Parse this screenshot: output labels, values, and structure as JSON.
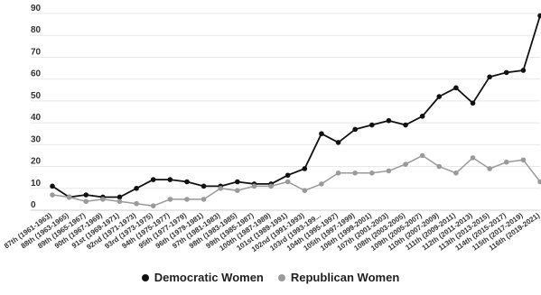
{
  "chart_data": {
    "type": "line",
    "title": "",
    "xlabel": "",
    "ylabel": "",
    "ylim": [
      0,
      90
    ],
    "grid": true,
    "legend_position": "bottom",
    "categories": [
      "87th (1961-1963)",
      "88th (1963-1965)",
      "89th (1965-1967)",
      "90th (1967-1969)",
      "91st (1969-1971)",
      "92nd (1971-1973)",
      "93rd (1973-1975)",
      "94th (1975-1977)",
      "95th (1977-1979)",
      "96th (1979-1981)",
      "97th (1981-1983)",
      "98th (1983-1985)",
      "99th (1985-1987)",
      "100th (1987-1989)",
      "101st (1989-1991)",
      "102nd (1991-1993)",
      "103rd (1993-199...",
      "104th (1995-1997)",
      "105th (1997-1999)",
      "106th (1999-2001)",
      "107th (2001-2003)",
      "108th (2003-2005)",
      "109th (2005-2007)",
      "110th (2007-2009)",
      "111th (2009-2011)",
      "112th (2011-2013)",
      "113th (2013-2015)",
      "114th (2015-2017)",
      "115th (2017-2019)",
      "116th (2019-2021)"
    ],
    "series": [
      {
        "name": "Democratic Women",
        "color": "#111111",
        "values": [
          11,
          6,
          7,
          6,
          6,
          10,
          14,
          14,
          13,
          11,
          11,
          13,
          12,
          12,
          16,
          19,
          35,
          31,
          37,
          39,
          41,
          39,
          43,
          52,
          56,
          49,
          61,
          63,
          64,
          89
        ]
      },
      {
        "name": "Republican Women",
        "color": "#9a9a9a",
        "values": [
          7,
          6,
          4,
          5,
          4,
          3,
          2,
          5,
          5,
          5,
          10,
          9,
          11,
          11,
          13,
          9,
          12,
          17,
          17,
          17,
          18,
          21,
          25,
          20,
          17,
          24,
          19,
          22,
          23,
          13
        ]
      }
    ],
    "y_ticks": [
      "0",
      "10",
      "20",
      "30",
      "40",
      "50",
      "60",
      "70",
      "80",
      "90"
    ]
  }
}
